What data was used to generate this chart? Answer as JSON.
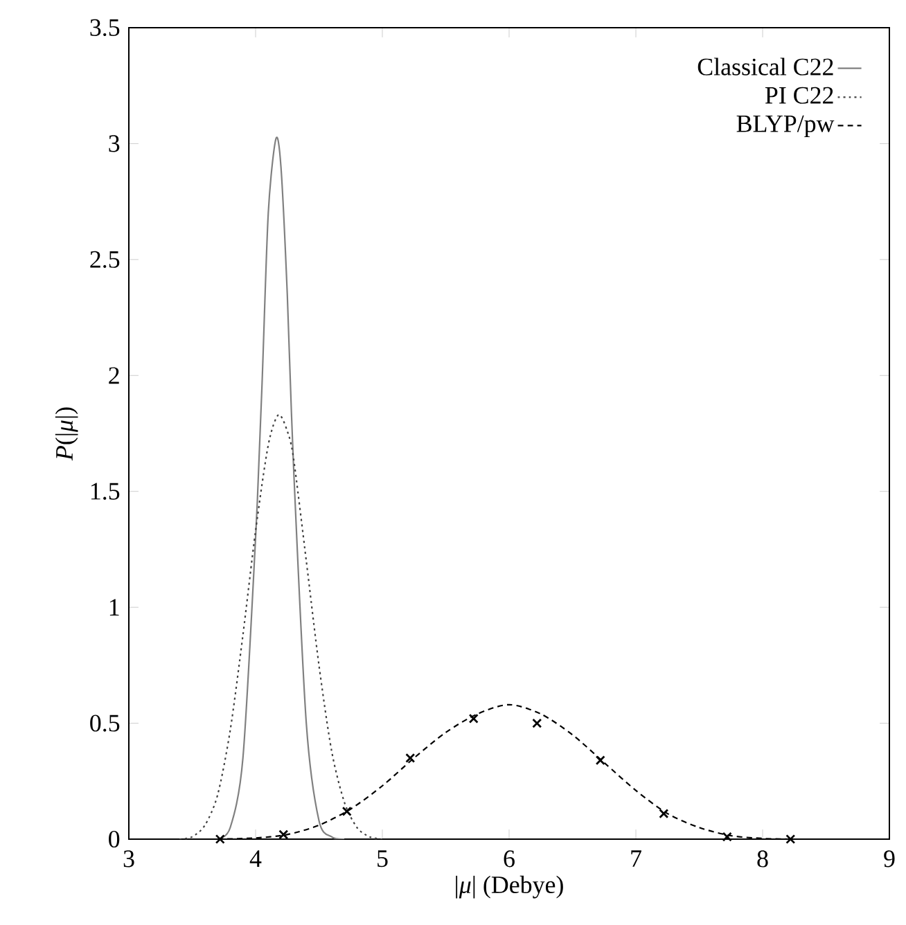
{
  "chart_data": {
    "type": "line",
    "xlabel": "|*μ*| (Debye)",
    "ylabel": "*P*(|*μ*|)",
    "xlim": [
      3,
      9
    ],
    "ylim": [
      0,
      3.5
    ],
    "xticks": [
      3,
      4,
      5,
      6,
      7,
      8,
      9
    ],
    "yticks": [
      0,
      0.5,
      1,
      1.5,
      2,
      2.5,
      3,
      3.5
    ],
    "grid": false,
    "legend": "top right",
    "series": [
      {
        "name": "Classical C22",
        "color": "#808080",
        "line_style": "solid",
        "marker": "none",
        "x": [
          3.7,
          3.8,
          3.9,
          4.0,
          4.05,
          4.1,
          4.16,
          4.2,
          4.25,
          4.3,
          4.4,
          4.5,
          4.6,
          4.7
        ],
        "values": [
          0,
          0.05,
          0.35,
          1.3,
          1.95,
          2.7,
          3.02,
          2.9,
          2.35,
          1.6,
          0.5,
          0.08,
          0.01,
          0
        ]
      },
      {
        "name": "PI C22",
        "color": "#404040",
        "line_style": "dotted",
        "marker": "none",
        "x": [
          3.4,
          3.5,
          3.6,
          3.7,
          3.8,
          3.9,
          4.0,
          4.1,
          4.18,
          4.25,
          4.3,
          4.4,
          4.5,
          4.6,
          4.7,
          4.8,
          4.9,
          5.0
        ],
        "values": [
          0,
          0.01,
          0.06,
          0.19,
          0.47,
          0.88,
          1.33,
          1.7,
          1.83,
          1.76,
          1.64,
          1.2,
          0.75,
          0.38,
          0.16,
          0.05,
          0.01,
          0
        ]
      },
      {
        "name": "BLYP/pw",
        "color": "#000000",
        "line_style": "dashed",
        "marker": "none",
        "x": [
          3.7,
          4.0,
          4.25,
          4.5,
          4.75,
          5.0,
          5.25,
          5.5,
          5.75,
          6.0,
          6.25,
          6.5,
          6.75,
          7.0,
          7.25,
          7.5,
          7.75,
          8.0,
          8.2
        ],
        "values": [
          0,
          0.005,
          0.02,
          0.06,
          0.13,
          0.23,
          0.35,
          0.46,
          0.54,
          0.58,
          0.54,
          0.45,
          0.33,
          0.21,
          0.11,
          0.05,
          0.015,
          0.003,
          0
        ]
      },
      {
        "type": "scatter",
        "color": "#000000",
        "marker": "cross",
        "x": [
          3.72,
          4.22,
          4.72,
          5.22,
          5.72,
          6.22,
          6.72,
          7.22,
          7.72,
          8.22
        ],
        "values": [
          0,
          0.02,
          0.12,
          0.35,
          0.52,
          0.5,
          0.34,
          0.11,
          0.01,
          0
        ]
      }
    ]
  }
}
